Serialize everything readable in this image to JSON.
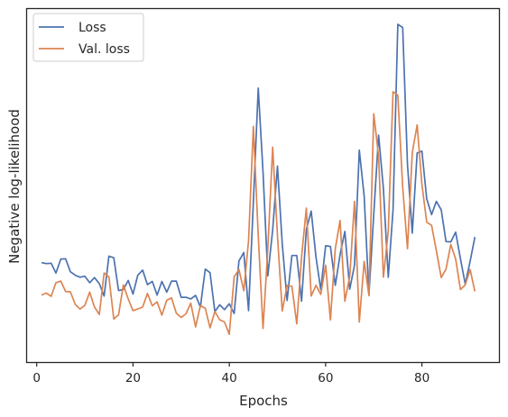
{
  "chart_data": {
    "type": "line",
    "xlabel": "Epochs",
    "ylabel": "Negative log-likelihood",
    "xlim": [
      -2,
      96
    ],
    "ylim": [
      0,
      1
    ],
    "x_ticks": [
      0,
      20,
      40,
      60,
      80
    ],
    "y_ticks_shown": false,
    "grid": false,
    "legend_position": "upper left",
    "series": [
      {
        "name": "Loss",
        "color": "#4c72b0",
        "x": [
          1,
          2,
          3,
          4,
          5,
          6,
          7,
          8,
          9,
          10,
          11,
          12,
          13,
          14,
          15,
          16,
          17,
          18,
          19,
          20,
          21,
          22,
          23,
          24,
          25,
          26,
          27,
          28,
          29,
          30,
          31,
          32,
          33,
          34,
          35,
          36,
          37,
          38,
          39,
          40,
          41,
          42,
          43,
          44,
          45,
          46,
          47,
          48,
          49,
          50,
          51,
          52,
          53,
          54,
          55,
          56,
          57,
          58,
          59,
          60,
          61,
          62,
          63,
          64,
          65,
          66,
          67,
          68,
          69,
          70,
          71,
          72,
          73,
          74,
          75,
          76,
          77,
          78,
          79,
          80,
          81,
          82,
          83,
          84,
          85,
          86,
          87,
          88,
          89,
          90,
          91
        ],
        "values": [
          0.265,
          0.262,
          0.263,
          0.233,
          0.276,
          0.277,
          0.237,
          0.226,
          0.22,
          0.223,
          0.203,
          0.219,
          0.2,
          0.162,
          0.285,
          0.28,
          0.179,
          0.182,
          0.21,
          0.168,
          0.226,
          0.242,
          0.197,
          0.207,
          0.165,
          0.207,
          0.174,
          0.208,
          0.208,
          0.158,
          0.158,
          0.153,
          0.164,
          0.128,
          0.245,
          0.234,
          0.114,
          0.135,
          0.12,
          0.138,
          0.108,
          0.27,
          0.296,
          0.117,
          0.452,
          0.803,
          0.545,
          0.224,
          0.366,
          0.563,
          0.323,
          0.148,
          0.287,
          0.287,
          0.146,
          0.367,
          0.424,
          0.282,
          0.181,
          0.317,
          0.315,
          0.195,
          0.29,
          0.361,
          0.183,
          0.257,
          0.612,
          0.47,
          0.166,
          0.413,
          0.658,
          0.494,
          0.22,
          0.428,
          1.0,
          0.99,
          0.568,
          0.356,
          0.603,
          0.609,
          0.462,
          0.413,
          0.454,
          0.428,
          0.33,
          0.329,
          0.359,
          0.277,
          0.199,
          0.269,
          0.344
        ]
      },
      {
        "name": "Val. loss",
        "color": "#dd8452",
        "x": [
          1,
          2,
          3,
          4,
          5,
          6,
          7,
          8,
          9,
          10,
          11,
          12,
          13,
          14,
          15,
          16,
          17,
          18,
          19,
          20,
          21,
          22,
          23,
          24,
          25,
          26,
          27,
          28,
          29,
          30,
          31,
          32,
          33,
          34,
          35,
          36,
          37,
          38,
          39,
          40,
          41,
          42,
          43,
          44,
          45,
          46,
          47,
          48,
          49,
          50,
          51,
          52,
          53,
          54,
          55,
          56,
          57,
          58,
          59,
          60,
          61,
          62,
          63,
          64,
          65,
          66,
          67,
          68,
          69,
          70,
          71,
          72,
          73,
          74,
          75,
          76,
          77,
          78,
          79,
          80,
          81,
          82,
          83,
          84,
          85,
          86,
          87,
          88,
          89,
          90,
          91
        ],
        "values": [
          0.165,
          0.171,
          0.161,
          0.203,
          0.208,
          0.176,
          0.175,
          0.136,
          0.122,
          0.133,
          0.174,
          0.128,
          0.105,
          0.233,
          0.221,
          0.091,
          0.104,
          0.196,
          0.153,
          0.117,
          0.122,
          0.128,
          0.17,
          0.132,
          0.144,
          0.103,
          0.149,
          0.156,
          0.109,
          0.096,
          0.107,
          0.14,
          0.067,
          0.133,
          0.124,
          0.064,
          0.114,
          0.089,
          0.082,
          0.044,
          0.221,
          0.244,
          0.178,
          0.334,
          0.685,
          0.349,
          0.062,
          0.307,
          0.621,
          0.349,
          0.116,
          0.195,
          0.192,
          0.076,
          0.282,
          0.433,
          0.162,
          0.195,
          0.167,
          0.257,
          0.088,
          0.308,
          0.395,
          0.146,
          0.222,
          0.454,
          0.082,
          0.269,
          0.163,
          0.724,
          0.593,
          0.22,
          0.361,
          0.792,
          0.781,
          0.497,
          0.308,
          0.604,
          0.69,
          0.506,
          0.39,
          0.38,
          0.302,
          0.219,
          0.245,
          0.321,
          0.276,
          0.182,
          0.196,
          0.244,
          0.176
        ]
      }
    ]
  }
}
